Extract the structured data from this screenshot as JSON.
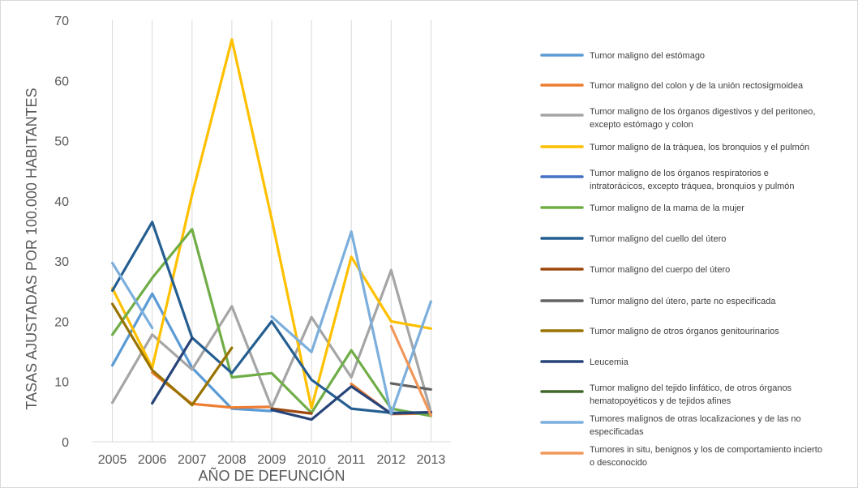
{
  "chart_data": {
    "type": "line",
    "title": "",
    "xlabel": "AÑO DE DEFUNCIÓN",
    "ylabel": "TASAS AJUSTADAS POR 100.000 HABITANTES",
    "x": [
      "2005",
      "2006",
      "2007",
      "2008",
      "2009",
      "2010",
      "2011",
      "2012",
      "2013"
    ],
    "ylim": [
      0,
      70
    ],
    "yticks": [
      0,
      10,
      20,
      30,
      40,
      50,
      60,
      70
    ],
    "grid": "vertical",
    "legend_position": "right",
    "series": [
      {
        "name": "Tumor maligno del estómago",
        "color": "#5b9bd5",
        "values": [
          12.7,
          24.6,
          12.3,
          5.5,
          5.1,
          null,
          null,
          null,
          null
        ]
      },
      {
        "name": "Tumor maligno del colon y de la unión rectosigmoidea",
        "color": "#ed7d31",
        "values": [
          null,
          11.5,
          6.3,
          5.7,
          5.8,
          null,
          9.6,
          4.6,
          4.7
        ]
      },
      {
        "name": "Tumor maligno de los órganos digestivos y del peritoneo, excepto estómago y colon",
        "color": "#a5a5a5",
        "values": [
          6.5,
          17.8,
          12.0,
          22.5,
          5.7,
          20.7,
          10.7,
          28.5,
          4.9
        ]
      },
      {
        "name": "Tumor maligno de la tráquea, los bronquios y el pulmón",
        "color": "#ffc000",
        "values": [
          25.5,
          12.3,
          41.0,
          66.8,
          37.0,
          5.6,
          30.7,
          20.0,
          18.8
        ]
      },
      {
        "name": "Tumor maligno de los órganos respiratorios e intratorácicos, excepto tráquea, bronquios y pulmón",
        "color": "#4472c4",
        "values": [
          null,
          null,
          null,
          null,
          null,
          null,
          null,
          null,
          null
        ]
      },
      {
        "name": "Tumor maligno de la mama de la mujer",
        "color": "#70ad47",
        "values": [
          17.8,
          27.2,
          35.3,
          10.7,
          11.4,
          4.8,
          15.2,
          5.5,
          4.3
        ]
      },
      {
        "name": "Tumor maligno del cuello del útero",
        "color": "#255e91",
        "values": [
          25.1,
          36.5,
          17.3,
          11.4,
          20.0,
          10.3,
          5.5,
          4.8,
          4.9
        ]
      },
      {
        "name": "Tumor maligno del cuerpo del útero",
        "color": "#9e480e",
        "values": [
          null,
          null,
          null,
          null,
          5.5,
          4.7,
          null,
          null,
          null
        ]
      },
      {
        "name": "Tumor maligno del útero, parte no especificada",
        "color": "#636363",
        "values": [
          null,
          null,
          null,
          null,
          null,
          null,
          null,
          9.7,
          8.7
        ]
      },
      {
        "name": "Tumor maligno de otros órganos genitourinarios",
        "color": "#997300",
        "values": [
          22.9,
          11.9,
          6.1,
          15.6,
          null,
          null,
          null,
          null,
          null
        ]
      },
      {
        "name": "Leucemia",
        "color": "#264478",
        "values": [
          null,
          6.4,
          17.2,
          null,
          5.3,
          3.7,
          9.2,
          4.7,
          4.9
        ]
      },
      {
        "name": "Tumor maligno del tejido linfático, de otros órganos hematopoyéticos y de tejidos afines",
        "color": "#43682b",
        "values": [
          null,
          null,
          null,
          null,
          null,
          null,
          null,
          null,
          null
        ]
      },
      {
        "name": "Tumores malignos de otras localizaciones y de las no especificadas",
        "color": "#7cafdd",
        "values": [
          29.7,
          18.9,
          null,
          null,
          20.8,
          14.9,
          34.9,
          4.6,
          23.3
        ]
      },
      {
        "name": "Tumores in situ, benignos y los de comportamiento incierto o desconocido",
        "color": "#f1975a",
        "values": [
          null,
          null,
          null,
          null,
          null,
          null,
          null,
          19.2,
          4.4
        ]
      }
    ],
    "legend": {
      "items": [
        {
          "lines": [
            "Tumor maligno del estómago"
          ]
        },
        {
          "lines": [
            "Tumor maligno del colon y de la unión rectosigmoidea"
          ]
        },
        {
          "lines": [
            "Tumor maligno de los órganos digestivos y del peritoneo,",
            "excepto estómago y colon"
          ]
        },
        {
          "lines": [
            "Tumor maligno de la tráquea, los bronquios y el pulmón"
          ]
        },
        {
          "lines": [
            "Tumor maligno de los órganos respiratorios e",
            "intratorácicos, excepto tráquea, bronquios y pulmón"
          ]
        },
        {
          "lines": [
            "Tumor maligno de la mama de la mujer"
          ]
        },
        {
          "lines": [
            "Tumor maligno del cuello del útero"
          ]
        },
        {
          "lines": [
            "Tumor maligno del cuerpo del útero"
          ]
        },
        {
          "lines": [
            "Tumor maligno del útero, parte no especificada"
          ]
        },
        {
          "lines": [
            "Tumor maligno de otros órganos genitourinarios"
          ]
        },
        {
          "lines": [
            "Leucemia"
          ]
        },
        {
          "lines": [
            "Tumor maligno del tejido linfático, de otros órganos",
            "hematopoyéticos y de tejidos afines"
          ]
        },
        {
          "lines": [
            "Tumores malignos de otras localizaciones y de las no",
            "especificadas"
          ]
        },
        {
          "lines": [
            "Tumores in situ, benignos y los de comportamiento incierto",
            "o desconocido"
          ]
        }
      ]
    }
  }
}
